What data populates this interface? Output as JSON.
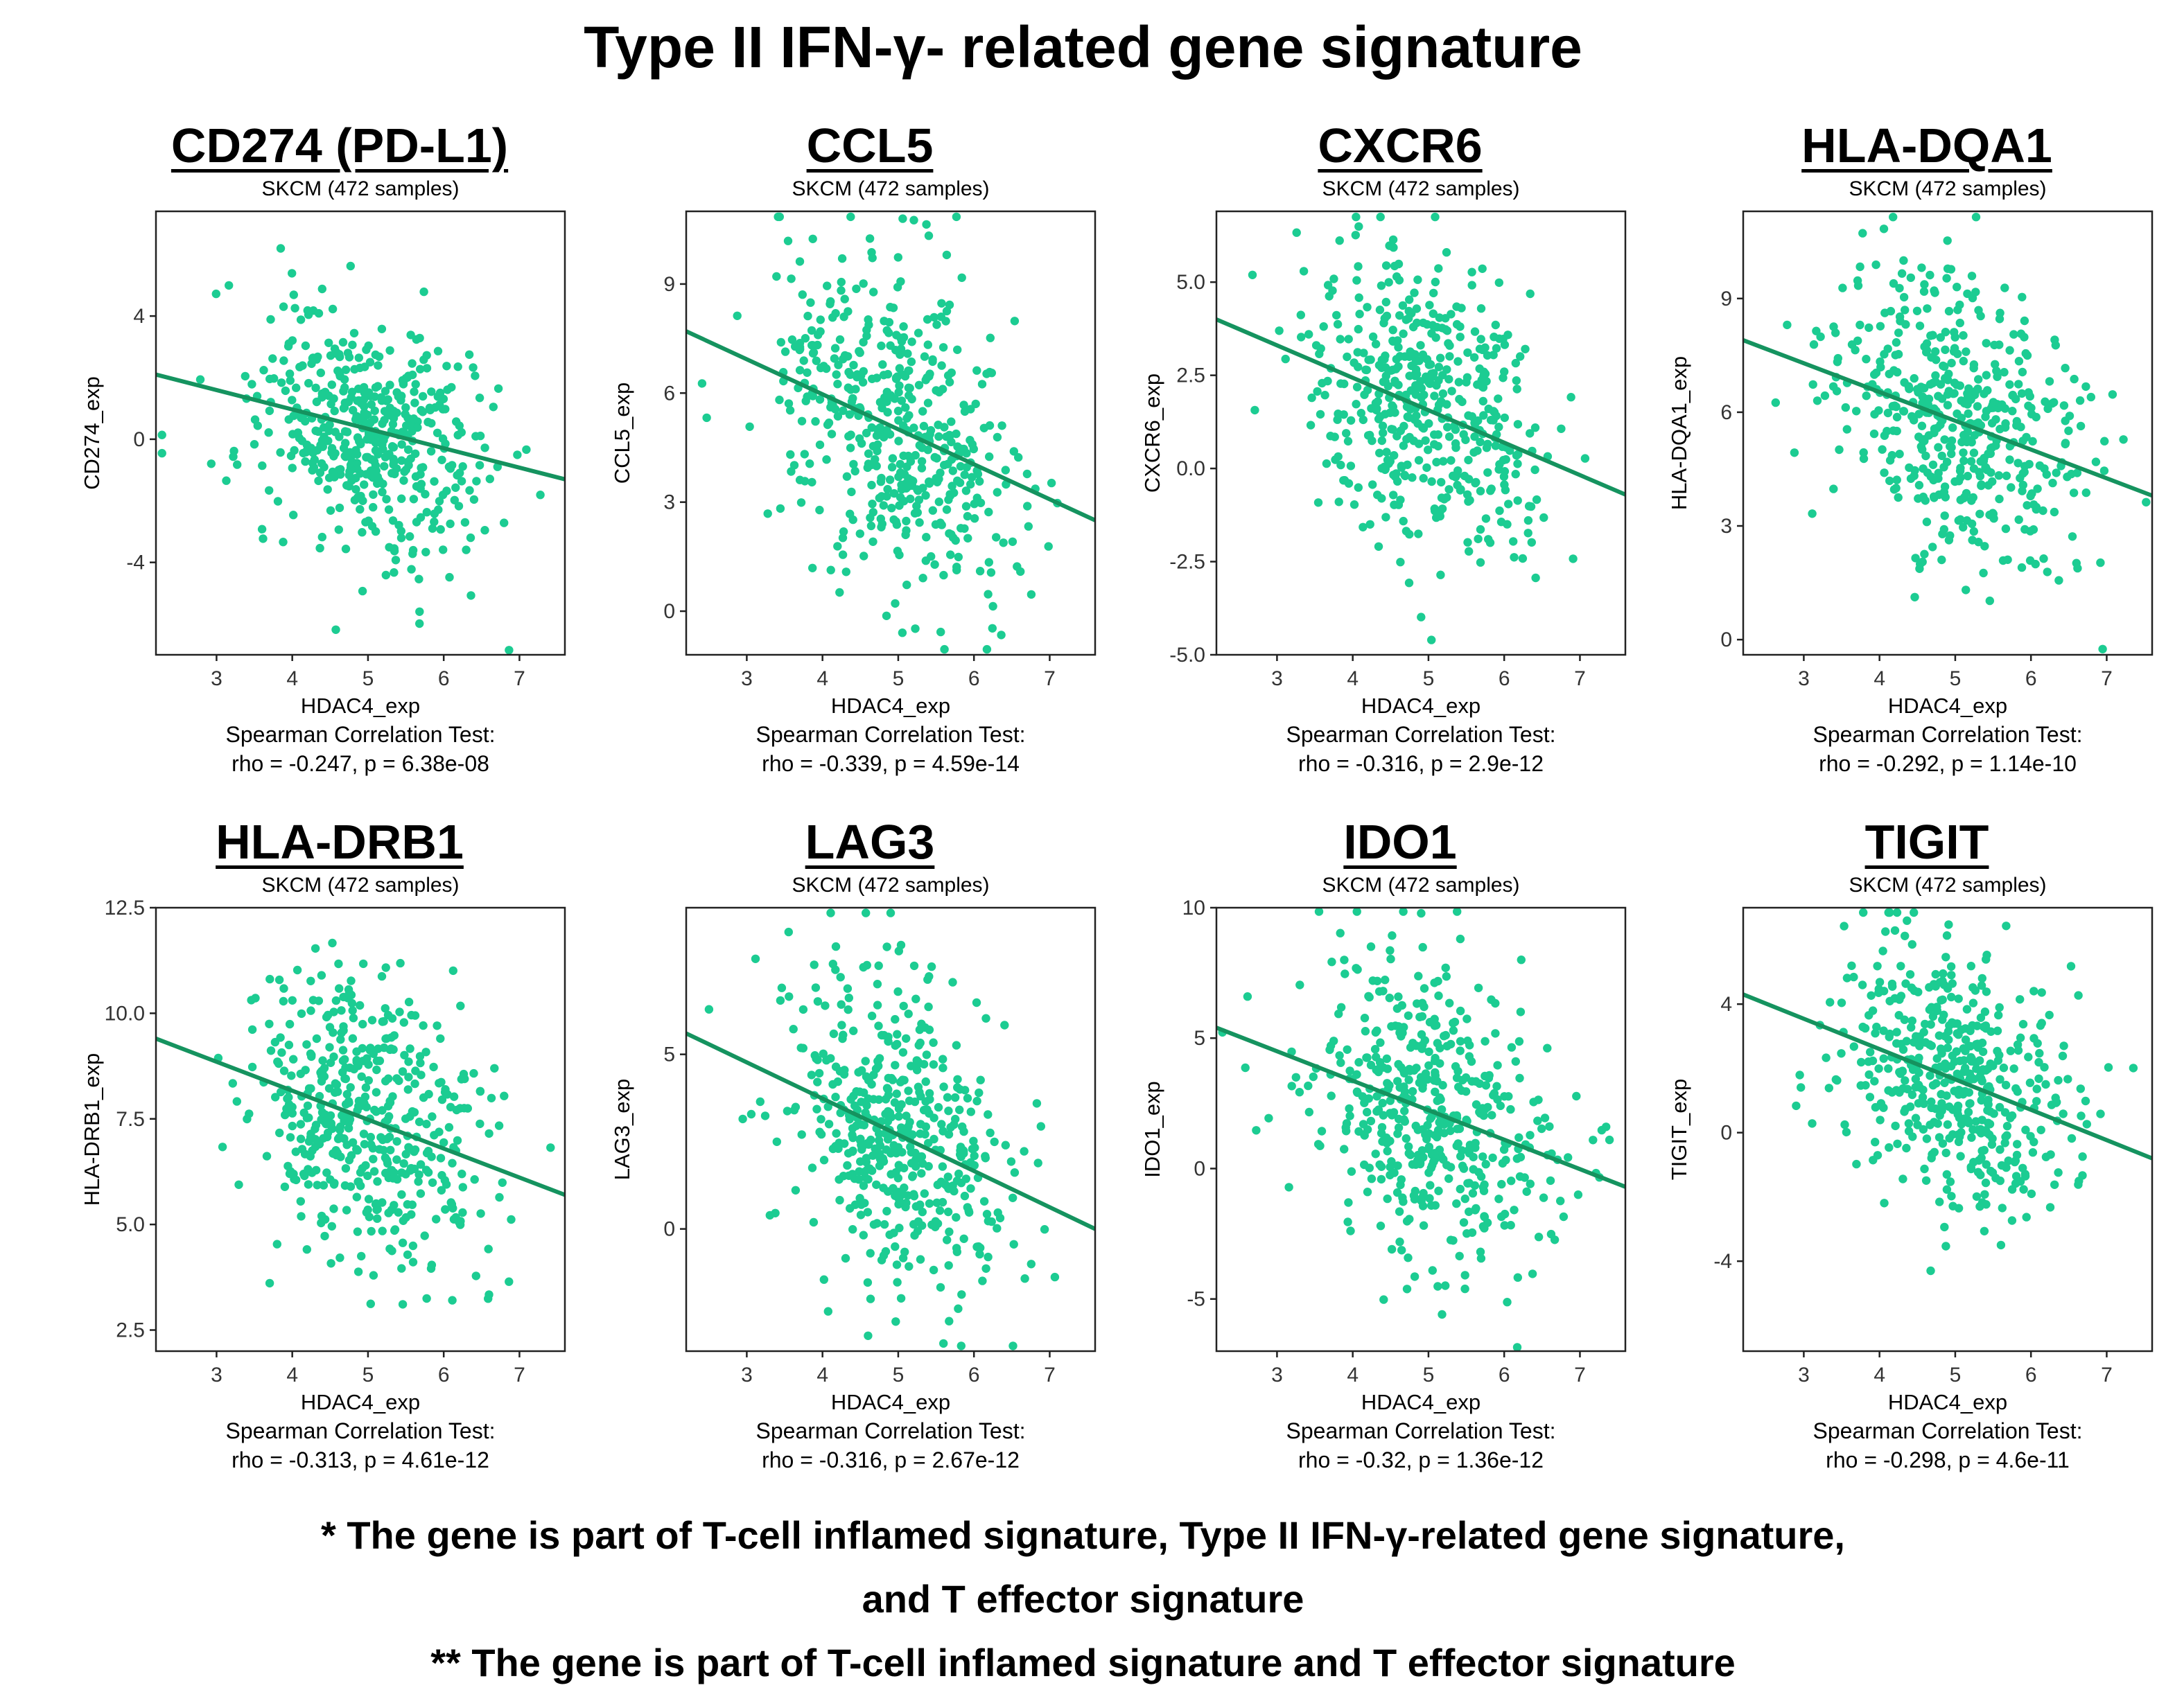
{
  "title": "Type II IFN-γ- related gene signature",
  "footnotes": {
    "line1": "* The gene is part of T-cell inflamed signature, Type II IFN-γ-related gene signature,",
    "line2": "and T effector signature",
    "line3": "** The gene is part of T-cell inflamed signature and T effector signature"
  },
  "colors": {
    "point": "#1ccc92",
    "line": "#15935f",
    "frame": "#222222"
  },
  "chart_data": [
    {
      "type": "scatter",
      "gene": "CD274 (PD-L1)",
      "subtitle": "SKCM (472 samples)",
      "xlabel": "HDAC4_exp",
      "ylabel": "CD274_exp",
      "xlim": [
        2.2,
        7.6
      ],
      "ylim": [
        -7.0,
        7.4
      ],
      "xticks": [
        3,
        4,
        5,
        6,
        7
      ],
      "yticks": [
        -4,
        0,
        4
      ],
      "fit": {
        "x": [
          2.2,
          7.6
        ],
        "y": [
          2.1,
          -1.3
        ]
      },
      "stats_label": "Spearman Correlation Test:",
      "stats": "rho = -0.247, p = 6.38e-08",
      "point_spread": 1.9
    },
    {
      "type": "scatter",
      "gene": "CCL5",
      "subtitle": "SKCM (472 samples)",
      "xlabel": "HDAC4_exp",
      "ylabel": "CCL5_exp",
      "xlim": [
        2.2,
        7.6
      ],
      "ylim": [
        -1.2,
        11.0
      ],
      "xticks": [
        3,
        4,
        5,
        6,
        7
      ],
      "yticks": [
        0,
        3,
        6,
        9
      ],
      "fit": {
        "x": [
          2.2,
          7.6
        ],
        "y": [
          7.7,
          2.5
        ]
      },
      "stats_label": "Spearman Correlation Test:",
      "stats": "rho = -0.339, p = 4.59e-14",
      "point_spread": 2.1
    },
    {
      "type": "scatter",
      "gene": "CXCR6",
      "subtitle": "SKCM (472 samples)",
      "xlabel": "HDAC4_exp",
      "ylabel": "CXCR6_exp",
      "xlim": [
        2.2,
        7.6
      ],
      "ylim": [
        -5.0,
        6.9
      ],
      "xticks": [
        3,
        4,
        5,
        6,
        7
      ],
      "yticks": [
        -5.0,
        -2.5,
        0.0,
        2.5,
        5.0
      ],
      "ytick_decimals": 1,
      "fit": {
        "x": [
          2.2,
          7.6
        ],
        "y": [
          4.0,
          -0.7
        ]
      },
      "stats_label": "Spearman Correlation Test:",
      "stats": "rho = -0.316, p = 2.9e-12",
      "point_spread": 2.0
    },
    {
      "type": "scatter",
      "gene": "HLA-DQA1",
      "subtitle": "SKCM (472 samples)",
      "xlabel": "HDAC4_exp",
      "ylabel": "HLA-DQA1_exp",
      "xlim": [
        2.2,
        7.6
      ],
      "ylim": [
        -0.4,
        11.3
      ],
      "xticks": [
        3,
        4,
        5,
        6,
        7
      ],
      "yticks": [
        0,
        3,
        6,
        9
      ],
      "fit": {
        "x": [
          2.2,
          7.6
        ],
        "y": [
          7.9,
          3.8
        ]
      },
      "stats_label": "Spearman Correlation Test:",
      "stats": "rho = -0.292, p = 1.14e-10",
      "point_spread": 1.9
    },
    {
      "type": "scatter",
      "gene": "HLA-DRB1",
      "subtitle": "SKCM (472 samples)",
      "xlabel": "HDAC4_exp",
      "ylabel": "HLA-DRB1_exp",
      "xlim": [
        2.2,
        7.6
      ],
      "ylim": [
        2.0,
        12.5
      ],
      "xticks": [
        3,
        4,
        5,
        6,
        7
      ],
      "yticks": [
        2.5,
        5.0,
        7.5,
        10.0,
        12.5
      ],
      "ytick_decimals": 1,
      "fit": {
        "x": [
          2.2,
          7.6
        ],
        "y": [
          9.4,
          5.7
        ]
      },
      "stats_label": "Spearman Correlation Test:",
      "stats": "rho = -0.313, p = 4.61e-12",
      "point_spread": 1.7
    },
    {
      "type": "scatter",
      "gene": "LAG3",
      "subtitle": "SKCM (472 samples)",
      "xlabel": "HDAC4_exp",
      "ylabel": "LAG3_exp",
      "xlim": [
        2.2,
        7.6
      ],
      "ylim": [
        -3.5,
        9.2
      ],
      "xticks": [
        3,
        4,
        5,
        6,
        7
      ],
      "yticks": [
        0,
        5
      ],
      "fit": {
        "x": [
          2.2,
          7.6
        ],
        "y": [
          5.6,
          0.0
        ]
      },
      "stats_label": "Spearman Correlation Test:",
      "stats": "rho = -0.316, p = 2.67e-12",
      "point_spread": 2.1
    },
    {
      "type": "scatter",
      "gene": "IDO1",
      "subtitle": "SKCM (472 samples)",
      "xlabel": "HDAC4_exp",
      "ylabel": "IDO1_exp",
      "xlim": [
        2.2,
        7.6
      ],
      "ylim": [
        -7.0,
        10.0
      ],
      "xticks": [
        3,
        4,
        5,
        6,
        7
      ],
      "yticks": [
        -5,
        0,
        5,
        10
      ],
      "fit": {
        "x": [
          2.2,
          7.6
        ],
        "y": [
          5.4,
          -0.7
        ]
      },
      "stats_label": "Spearman Correlation Test:",
      "stats": "rho = -0.32, p = 1.36e-12",
      "point_spread": 2.8
    },
    {
      "type": "scatter",
      "gene": "TIGIT",
      "subtitle": "SKCM (472 samples)",
      "xlabel": "HDAC4_exp",
      "ylabel": "TIGIT_exp",
      "xlim": [
        2.2,
        7.6
      ],
      "ylim": [
        -6.8,
        7.0
      ],
      "xticks": [
        3,
        4,
        5,
        6,
        7
      ],
      "yticks": [
        -4,
        0,
        4
      ],
      "fit": {
        "x": [
          2.2,
          7.6
        ],
        "y": [
          4.3,
          -0.8
        ]
      },
      "stats_label": "Spearman Correlation Test:",
      "stats": "rho = -0.298, p = 4.6e-11",
      "point_spread": 2.1
    }
  ]
}
